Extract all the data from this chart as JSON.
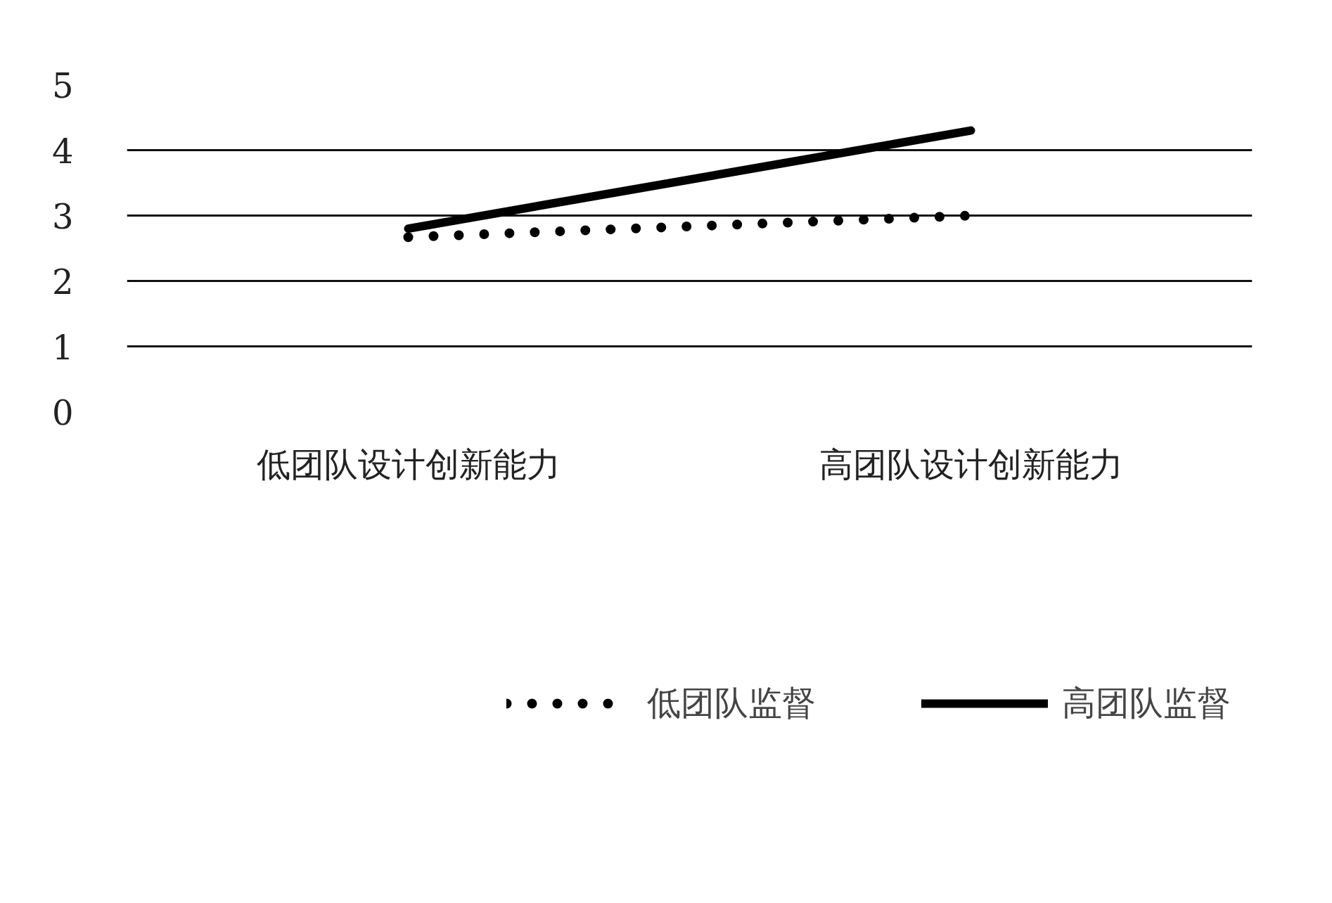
{
  "chart_data": {
    "type": "line",
    "categories": [
      "低团队设计创新能力",
      "高团队设计创新能力"
    ],
    "series": [
      {
        "name": "低团队监督",
        "color": "#000000",
        "values": [
          2.67,
          3.0
        ],
        "line_style": "dotted"
      },
      {
        "name": "高团队监督",
        "color": "#000000",
        "values": [
          2.8,
          4.3
        ],
        "line_style": "solid"
      }
    ],
    "ylim": [
      0,
      5
    ],
    "yticks": [
      0,
      1,
      2,
      3,
      4,
      5
    ],
    "grid": "y",
    "legend": "bottom",
    "marker": "none"
  }
}
